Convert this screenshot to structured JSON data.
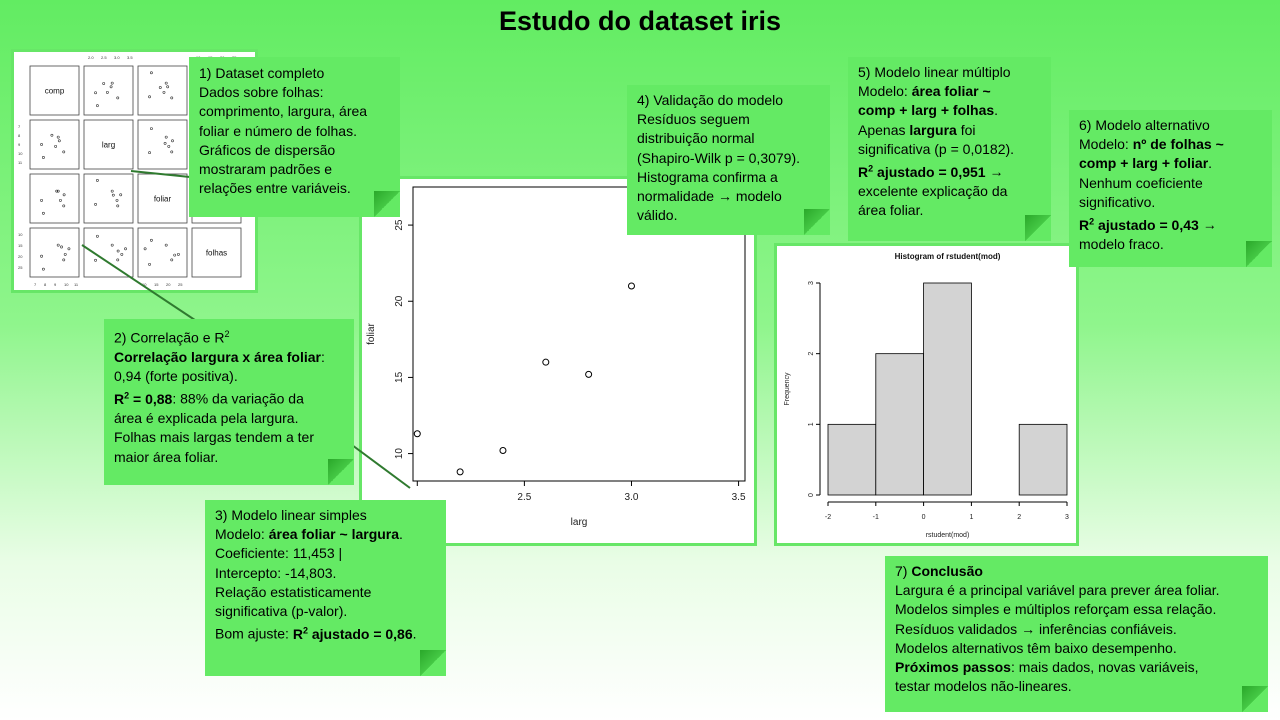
{
  "title": "Estudo do dataset iris",
  "scatter_matrix": {
    "labels": [
      "comp",
      "larg",
      "foliar",
      "folhas"
    ],
    "top_ticks_a": [
      "2.0",
      "2.5",
      "3.0",
      "3.5"
    ],
    "top_ticks_b": [
      "10",
      "15",
      "20",
      "25"
    ],
    "bottom_ticks_a": [
      "7",
      "8",
      "9",
      "10",
      "11"
    ],
    "bottom_ticks_b": [
      "10",
      "15",
      "20",
      "25"
    ],
    "left_ticks_a": [
      "7",
      "8",
      "9",
      "10",
      "11"
    ],
    "left_ticks_b": [
      "10",
      "15",
      "20",
      "25"
    ]
  },
  "notes": {
    "n1": {
      "heading": "1)   Dataset completo",
      "lines": [
        "Dados sobre folhas:",
        "comprimento, largura, área",
        "foliar e número de folhas.",
        "Gráficos de dispersão",
        "mostraram padrões e",
        "relações entre variáveis."
      ]
    },
    "n2": {
      "heading": "2) Correlação e R",
      "heading_sup": "2",
      "bold1": "Correlação largura x área foliar",
      "rest1": ":",
      "line2": "0,94 (forte positiva).",
      "r2_prefix": "R",
      "r2_sup": "2",
      "r2_value": " = 0,88",
      "r2_rest": ": 88% da variação da",
      "line4": "área é explicada pela largura.",
      "line5": "Folhas mais largas tendem a ter",
      "line6": "maior área foliar."
    },
    "n3": {
      "heading": "3) Modelo linear simples",
      "model_prefix": "Modelo: ",
      "model_bold": "área foliar ~ largura",
      "model_suffix": ".",
      "line3": "Coeficiente: 11,453 |",
      "line4": "Intercepto: -14,803.",
      "line5": "Relação estatisticamente",
      "line6": "significativa (p-valor).",
      "fit_prefix": "Bom ajuste: ",
      "fit_bold_a": "R",
      "fit_sup": "2",
      "fit_bold_b": " ajustado = 0,86",
      "fit_suffix": "."
    },
    "n4": {
      "heading": "4) Validação do modelo",
      "lines": [
        "Resíduos seguem",
        "distribuição normal",
        "(Shapiro-Wilk p = 0,3079).",
        "Histograma confirma a",
        "normalidade → modelo",
        "válido."
      ]
    },
    "n5": {
      "heading": "5) Modelo linear múltiplo",
      "model_prefix": "Modelo: ",
      "model_bold_1": "área foliar ~",
      "model_bold_2": "comp + larg + folhas",
      "model_suffix": ".",
      "only_prefix": "Apenas ",
      "only_bold": "largura",
      "only_suffix": " foi",
      "line5": "significativa (p = 0,0182).",
      "r2_a": "R",
      "r2_sup": "2",
      "r2_b": " ajustado = 0,951",
      "r2_suffix": " →",
      "line7": "excelente explicação da",
      "line8": "área foliar."
    },
    "n6": {
      "heading": "6) Modelo alternativo",
      "model_prefix": "Modelo: ",
      "model_bold_1": "nº de folhas ~",
      "model_bold_2": "comp + larg + foliar",
      "model_suffix": ".",
      "line4": "Nenhum coeficiente",
      "line5": "significativo.",
      "r2_a": "R",
      "r2_sup": "2",
      "r2_b": " ajustado = 0,43",
      "r2_suffix": " →",
      "line7": "modelo fraco."
    },
    "n7": {
      "heading_prefix": "7) ",
      "heading_bold": "Conclusão",
      "lines": [
        "Largura é a principal variável para prever área foliar.",
        "Modelos simples e múltiplos reforçam essa relação.",
        "Resíduos validados → inferências confiáveis.",
        "Modelos alternativos têm baixo desempenho."
      ],
      "next_bold": "Próximos passos",
      "next_rest": ": mais dados, novas variáveis,",
      "last_line": "testar modelos não-lineares."
    }
  },
  "chart_data": [
    {
      "type": "scatter",
      "xlabel": "larg",
      "ylabel": "foliar",
      "x_ticks": [
        "2.5",
        "3.0",
        "3.5"
      ],
      "y_ticks": [
        "10",
        "15",
        "20",
        "25"
      ],
      "xlim": [
        1.98,
        3.53
      ],
      "ylim": [
        8.2,
        27.5
      ],
      "points": [
        {
          "x": 2.0,
          "y": 11.3
        },
        {
          "x": 2.2,
          "y": 8.8
        },
        {
          "x": 2.4,
          "y": 10.2
        },
        {
          "x": 2.6,
          "y": 16.0
        },
        {
          "x": 2.8,
          "y": 15.2
        },
        {
          "x": 3.0,
          "y": 21.0
        }
      ]
    },
    {
      "type": "bar",
      "title": "Histogram of rstudent(mod)",
      "xlabel": "rstudent(mod)",
      "ylabel": "Frequency",
      "bins": [
        [
          -2,
          -1
        ],
        [
          -1,
          0
        ],
        [
          0,
          1
        ],
        [
          1,
          2
        ],
        [
          2,
          3
        ]
      ],
      "values": [
        1,
        2,
        3,
        0,
        1
      ],
      "x_ticks": [
        "-2",
        "-1",
        "0",
        "1",
        "2",
        "3"
      ],
      "y_ticks": [
        "0",
        "1",
        "2",
        "3"
      ],
      "ylim": [
        0,
        3
      ]
    }
  ]
}
